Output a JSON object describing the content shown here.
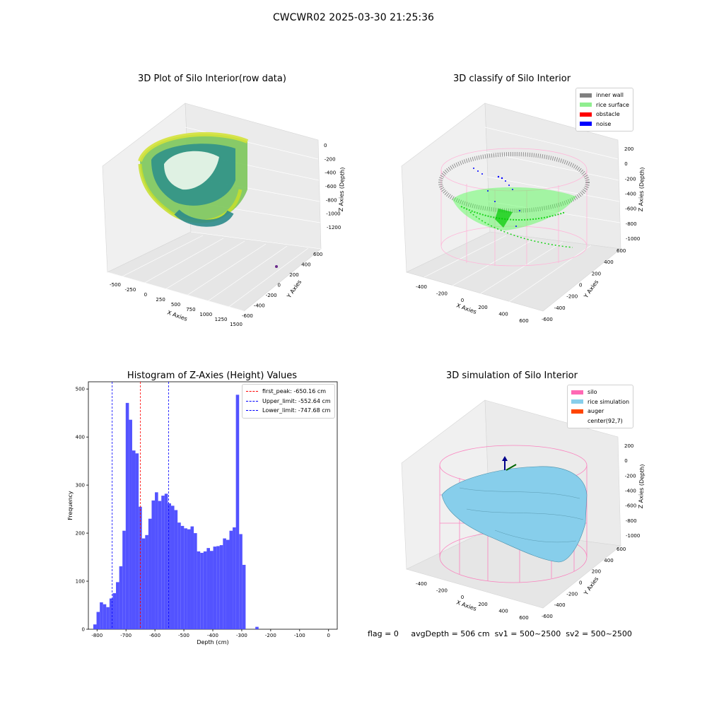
{
  "figure": {
    "title": "CWCWR02 2025-03-30 21:25:36",
    "status": {
      "flag": "flag = 0",
      "avg_depth": "avgDepth = 506 cm",
      "sv1": "sv1 = 500~2500",
      "sv2": "sv2 = 500~2500"
    }
  },
  "chart_data": [
    {
      "type": "scatter",
      "title": "3D Plot of Silo Interior(row data)",
      "xlabel": "X Axies",
      "ylabel": "Y Axies",
      "zlabel": "Z Axies (Depth)",
      "x_ticks": [
        "-500",
        "-250",
        "0",
        "250",
        "500",
        "750",
        "1000",
        "1250",
        "1500"
      ],
      "y_ticks": [
        "-600",
        "-400",
        "-200",
        "0",
        "200",
        "400",
        "600"
      ],
      "z_ticks": [
        "0",
        "-200",
        "-400",
        "-600",
        "-800",
        "-1000",
        "-1200"
      ],
      "colormap": "viridis (by depth)"
    },
    {
      "type": "scatter",
      "title": "3D classify of Silo Interior",
      "xlabel": "X Axies",
      "ylabel": "Y Axies",
      "zlabel": "Z Axies (Depth)",
      "x_ticks": [
        "-400",
        "-200",
        "0",
        "200",
        "400",
        "600"
      ],
      "y_ticks": [
        "-600",
        "-400",
        "-200",
        "0",
        "200",
        "400",
        "600"
      ],
      "z_ticks": [
        "200",
        "0",
        "-200",
        "-400",
        "-600",
        "-800",
        "-1000"
      ],
      "legend": [
        {
          "label": "inner wall",
          "color": "#808080"
        },
        {
          "label": "rice surface",
          "color": "#90ee90"
        },
        {
          "label": "obstacle",
          "color": "#ff0000"
        },
        {
          "label": "noise",
          "color": "#0000ff"
        }
      ]
    },
    {
      "type": "bar",
      "title": "Histogram of Z-Axies (Height) Values",
      "xlabel": "Depth (cm)",
      "ylabel": "Frequency",
      "xlim": [
        -830,
        30
      ],
      "ylim": [
        0,
        515
      ],
      "x_ticks": [
        -800,
        -700,
        -600,
        -500,
        -400,
        -300,
        -200,
        -100,
        0
      ],
      "y_ticks": [
        0,
        100,
        200,
        300,
        400,
        500
      ],
      "bar_color": "#4a4aff",
      "bin_start": -813,
      "bin_width": 11.2,
      "values": [
        10,
        36,
        56,
        52,
        46,
        64,
        75,
        98,
        131,
        205,
        471,
        436,
        372,
        366,
        255,
        189,
        196,
        230,
        268,
        285,
        267,
        278,
        282,
        262,
        257,
        248,
        222,
        215,
        210,
        208,
        214,
        200,
        162,
        159,
        162,
        169,
        163,
        172,
        173,
        175,
        189,
        186,
        205,
        212,
        488,
        198,
        134,
        0,
        0,
        0,
        5
      ],
      "reference_lines": [
        {
          "label": "first_peak: -650.16 cm",
          "x": -650.16,
          "color": "#ff0000"
        },
        {
          "label": "Upper_limit: -552.64 cm",
          "x": -552.64,
          "color": "#0000ff"
        },
        {
          "label": "Lower_limit: -747.68 cm",
          "x": -747.68,
          "color": "#0000ff"
        }
      ]
    },
    {
      "type": "area",
      "title": "3D simulation of Silo Interior",
      "xlabel": "X Axies",
      "ylabel": "Y Axies",
      "zlabel": "Z Axies (Depth)",
      "x_ticks": [
        "-400",
        "-200",
        "0",
        "200",
        "400",
        "600"
      ],
      "y_ticks": [
        "-600",
        "-400",
        "-200",
        "0",
        "200",
        "400",
        "600"
      ],
      "z_ticks": [
        "200",
        "0",
        "-200",
        "-400",
        "-600",
        "-800",
        "-1000"
      ],
      "legend": [
        {
          "label": "silo",
          "color": "#ff69b4"
        },
        {
          "label": "rice simulation",
          "color": "#87ceeb"
        },
        {
          "label": "auger",
          "color": "#ff4500"
        },
        {
          "label": "center(92,7)",
          "color": ""
        }
      ]
    }
  ]
}
